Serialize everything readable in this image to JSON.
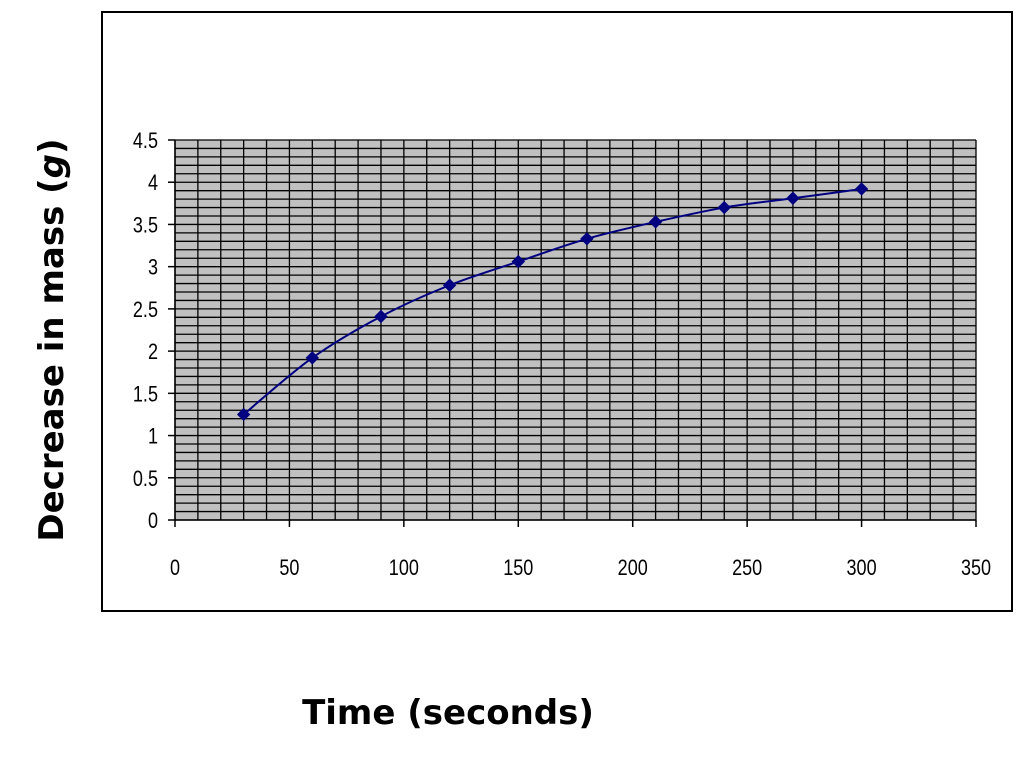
{
  "chart_data": {
    "type": "line",
    "xlabel": "Time (seconds)",
    "ylabel": "Decrease in mass (g)",
    "xlim": [
      0,
      350
    ],
    "ylim": [
      0,
      4.5
    ],
    "x_ticks": [
      "0",
      "50",
      "100",
      "150",
      "200",
      "250",
      "300",
      "350"
    ],
    "y_ticks": [
      "0",
      "0.5",
      "1",
      "1.5",
      "2",
      "2.5",
      "3",
      "3.5",
      "4",
      "4.5"
    ],
    "grid": true,
    "plot_background": "#c0c0c0",
    "grid_color": "#000000",
    "series": [
      {
        "color": "#000080",
        "marker": "diamond",
        "x": [
          30,
          60,
          90,
          120,
          150,
          180,
          210,
          240,
          270,
          300
        ],
        "y": [
          1.25,
          1.92,
          2.41,
          2.78,
          3.06,
          3.33,
          3.53,
          3.7,
          3.81,
          3.92
        ]
      }
    ]
  }
}
